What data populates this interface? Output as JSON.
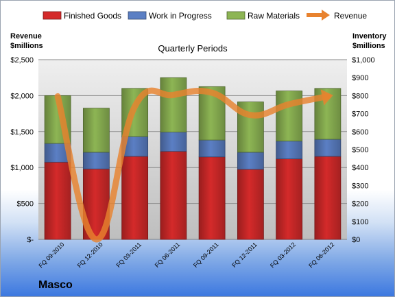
{
  "company": "Masco",
  "chart_data": {
    "type": "bar",
    "stacked": true,
    "subtitle": "Quarterly Periods",
    "ylabel_left": "Revenue $millions",
    "ylabel_left_lines": [
      "Revenue",
      "$millions"
    ],
    "ylabel_right": "Inventory $millions",
    "ylabel_right_lines": [
      "Inventory",
      "$millions"
    ],
    "categories": [
      "FQ 09-2010",
      "FQ 12-2010",
      "FQ 03-2011",
      "FQ 06-2011",
      "FQ 09-2011",
      "FQ 12-2011",
      "FQ 03-2012",
      "FQ 06-2012"
    ],
    "ylim_left": [
      0,
      2500
    ],
    "ylim_right": [
      0,
      1000
    ],
    "left_ticks": [
      "$-",
      "$500",
      "$1,000",
      "$1,500",
      "$2,000",
      "$2,500"
    ],
    "right_ticks": [
      "$0",
      "$100",
      "$200",
      "$300",
      "$400",
      "$500",
      "$600",
      "$700",
      "$800",
      "$900",
      "$1,000"
    ],
    "grid": true,
    "legend_position": "top",
    "series": [
      {
        "name": "Finished Goods",
        "axis": "right",
        "color": "#d42a2a",
        "values": [
          430,
          392,
          462,
          490,
          459,
          390,
          448,
          462
        ]
      },
      {
        "name": "Work in Progress",
        "axis": "right",
        "color": "#5b7fc4",
        "values": [
          104,
          93,
          110,
          107,
          94,
          95,
          99,
          95
        ]
      },
      {
        "name": "Raw Materials",
        "axis": "right",
        "color": "#8db554",
        "values": [
          266,
          245,
          268,
          303,
          297,
          280,
          279,
          283
        ]
      }
    ],
    "line": {
      "name": "Revenue",
      "axis": "left",
      "color": "#e8822e",
      "values": [
        1990,
        0,
        1850,
        2010,
        2040,
        1730,
        1880,
        1990
      ]
    }
  }
}
